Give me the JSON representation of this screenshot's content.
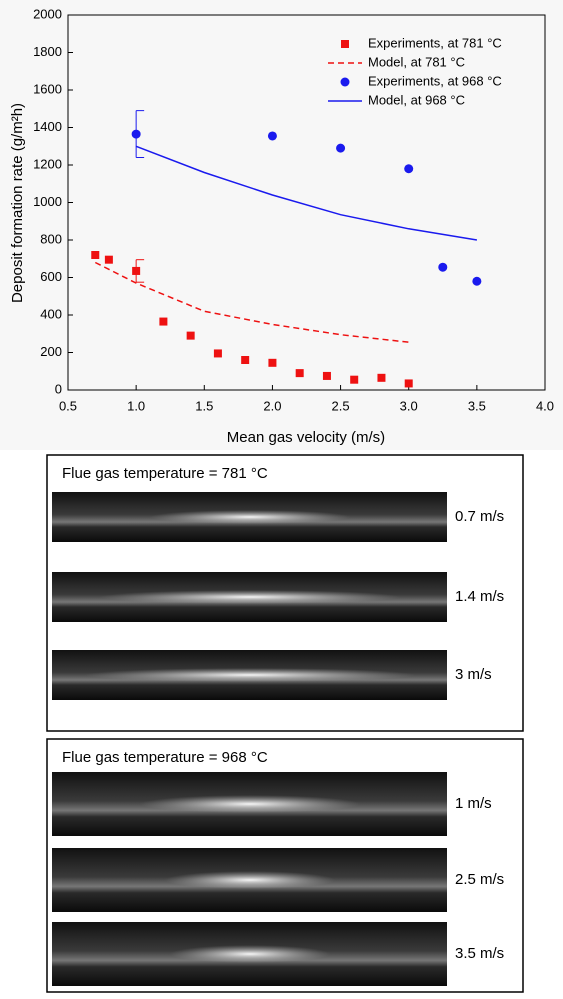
{
  "chart_data": {
    "type": "scatter-line",
    "x_label": "Mean gas velocity (m/s)",
    "y_label": "Deposit formation rate (g/m²h)",
    "xlim": [
      0.5,
      4.0
    ],
    "xticks": [
      0.5,
      {
        "value": 1,
        "label": "1.0"
      },
      1.5,
      {
        "value": 2,
        "label": "2.0"
      },
      2.5,
      {
        "value": 3,
        "label": "3.0"
      },
      3.5,
      {
        "value": 4,
        "label": "4.0"
      }
    ],
    "ylim": [
      0,
      2000
    ],
    "yticks": [
      0,
      200,
      400,
      600,
      800,
      1000,
      1200,
      1400,
      1600,
      1800,
      2000
    ],
    "legend": "top-right",
    "series": [
      {
        "name": "Experiments, at 781 °C",
        "color": "#ee1111",
        "mode": "square",
        "x": [
          0.7,
          0.8,
          1.0,
          1.2,
          1.4,
          1.6,
          1.8,
          2.0,
          2.2,
          2.4,
          2.6,
          2.8,
          3.0
        ],
        "values": [
          720,
          695,
          635,
          365,
          290,
          195,
          160,
          145,
          90,
          75,
          55,
          65,
          35
        ],
        "errors": [
          null,
          null,
          60,
          null,
          null,
          null,
          null,
          null,
          null,
          null,
          null,
          null,
          null
        ]
      },
      {
        "name": "Model, at 781 °C",
        "color": "#ee1111",
        "mode": "dashed",
        "x": [
          0.7,
          1.0,
          1.5,
          2.0,
          2.5,
          3.0
        ],
        "values": [
          680,
          570,
          420,
          350,
          295,
          255
        ]
      },
      {
        "name": "Experiments, at 968 °C",
        "color": "#1a1aee",
        "mode": "circle",
        "x": [
          1.0,
          2.0,
          2.5,
          3.0,
          3.25,
          3.5
        ],
        "values": [
          1365,
          1355,
          1290,
          1180,
          655,
          580
        ],
        "errors": [
          125,
          null,
          null,
          null,
          null,
          null
        ]
      },
      {
        "name": "Model, at 968 °C",
        "color": "#1a1aee",
        "mode": "solid",
        "x": [
          1.0,
          1.5,
          2.0,
          2.5,
          3.0,
          3.5
        ],
        "values": [
          1300,
          1160,
          1040,
          935,
          860,
          800
        ]
      }
    ]
  },
  "panels": [
    {
      "title": "Flue gas temperature = 781 °C",
      "labels": [
        "0.7 m/s",
        "1.4 m/s",
        "3 m/s"
      ]
    },
    {
      "title": "Flue gas temperature = 968 °C",
      "labels": [
        "1 m/s",
        "2.5 m/s",
        "3.5 m/s"
      ]
    }
  ]
}
